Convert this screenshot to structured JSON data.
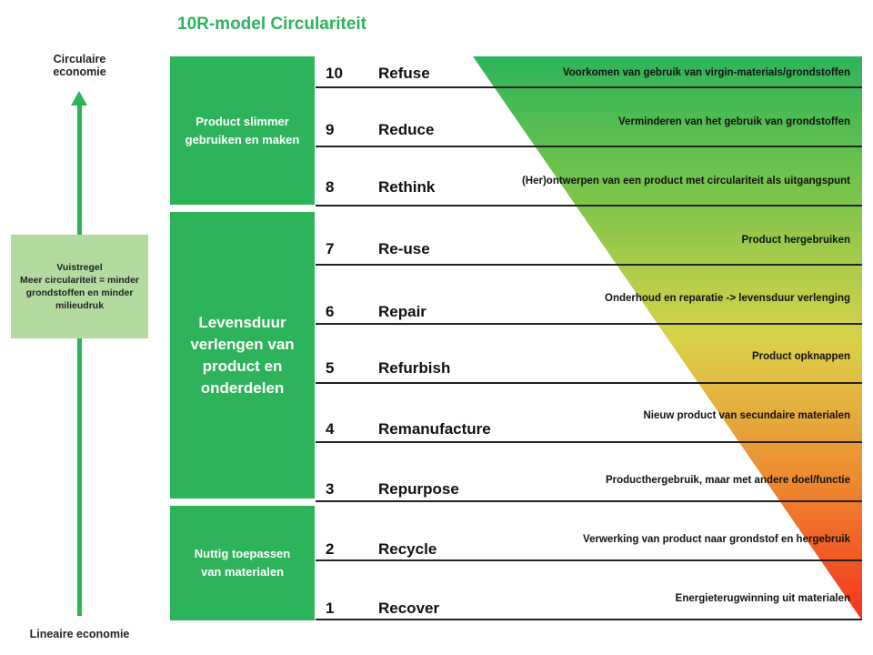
{
  "title": "10R-model Circulariteit",
  "axis": {
    "top": "Circulaire economie",
    "bottom": "Lineaire economie"
  },
  "rule": {
    "heading": "Vuistregel",
    "text": "Meer circulariteit = minder grondstoffen en minder milieudruk"
  },
  "groups": [
    {
      "label": "Product slimmer gebruiken en maken"
    },
    {
      "label": "Levensduur verlengen van product en onderdelen"
    },
    {
      "label": "Nuttig toepassen van materialen"
    }
  ],
  "rows": [
    {
      "num": "10",
      "name": "Refuse",
      "desc": "Voorkomen van gebruik van virgin-materials/grondstoffen"
    },
    {
      "num": "9",
      "name": "Reduce",
      "desc": "Verminderen van het gebruik van grondstoffen"
    },
    {
      "num": "8",
      "name": "Rethink",
      "desc": "(Her)ontwerpen van een product met circulariteit als uitgangspunt"
    },
    {
      "num": "7",
      "name": "Re-use",
      "desc": "Product hergebruiken"
    },
    {
      "num": "6",
      "name": "Repair",
      "desc": "Onderhoud en reparatie -> levensduur verlenging"
    },
    {
      "num": "5",
      "name": "Refurbish",
      "desc": "Product opknappen"
    },
    {
      "num": "4",
      "name": "Remanufacture",
      "desc": "Nieuw product van secundaire materialen"
    },
    {
      "num": "3",
      "name": "Repurpose",
      "desc": "Producthergebruik, maar met andere doel/functie"
    },
    {
      "num": "2",
      "name": "Recycle",
      "desc": "Verwerking van product naar grondstof en hergebruik"
    },
    {
      "num": "1",
      "name": "Recover",
      "desc": "Energieterugwinning uit materialen"
    }
  ],
  "colors": {
    "green": "#2db45a",
    "light_green": "#b3dba0",
    "gradient": [
      "#2db45a",
      "#7cc54a",
      "#d9d24a",
      "#ee8a30",
      "#f5321e"
    ]
  }
}
